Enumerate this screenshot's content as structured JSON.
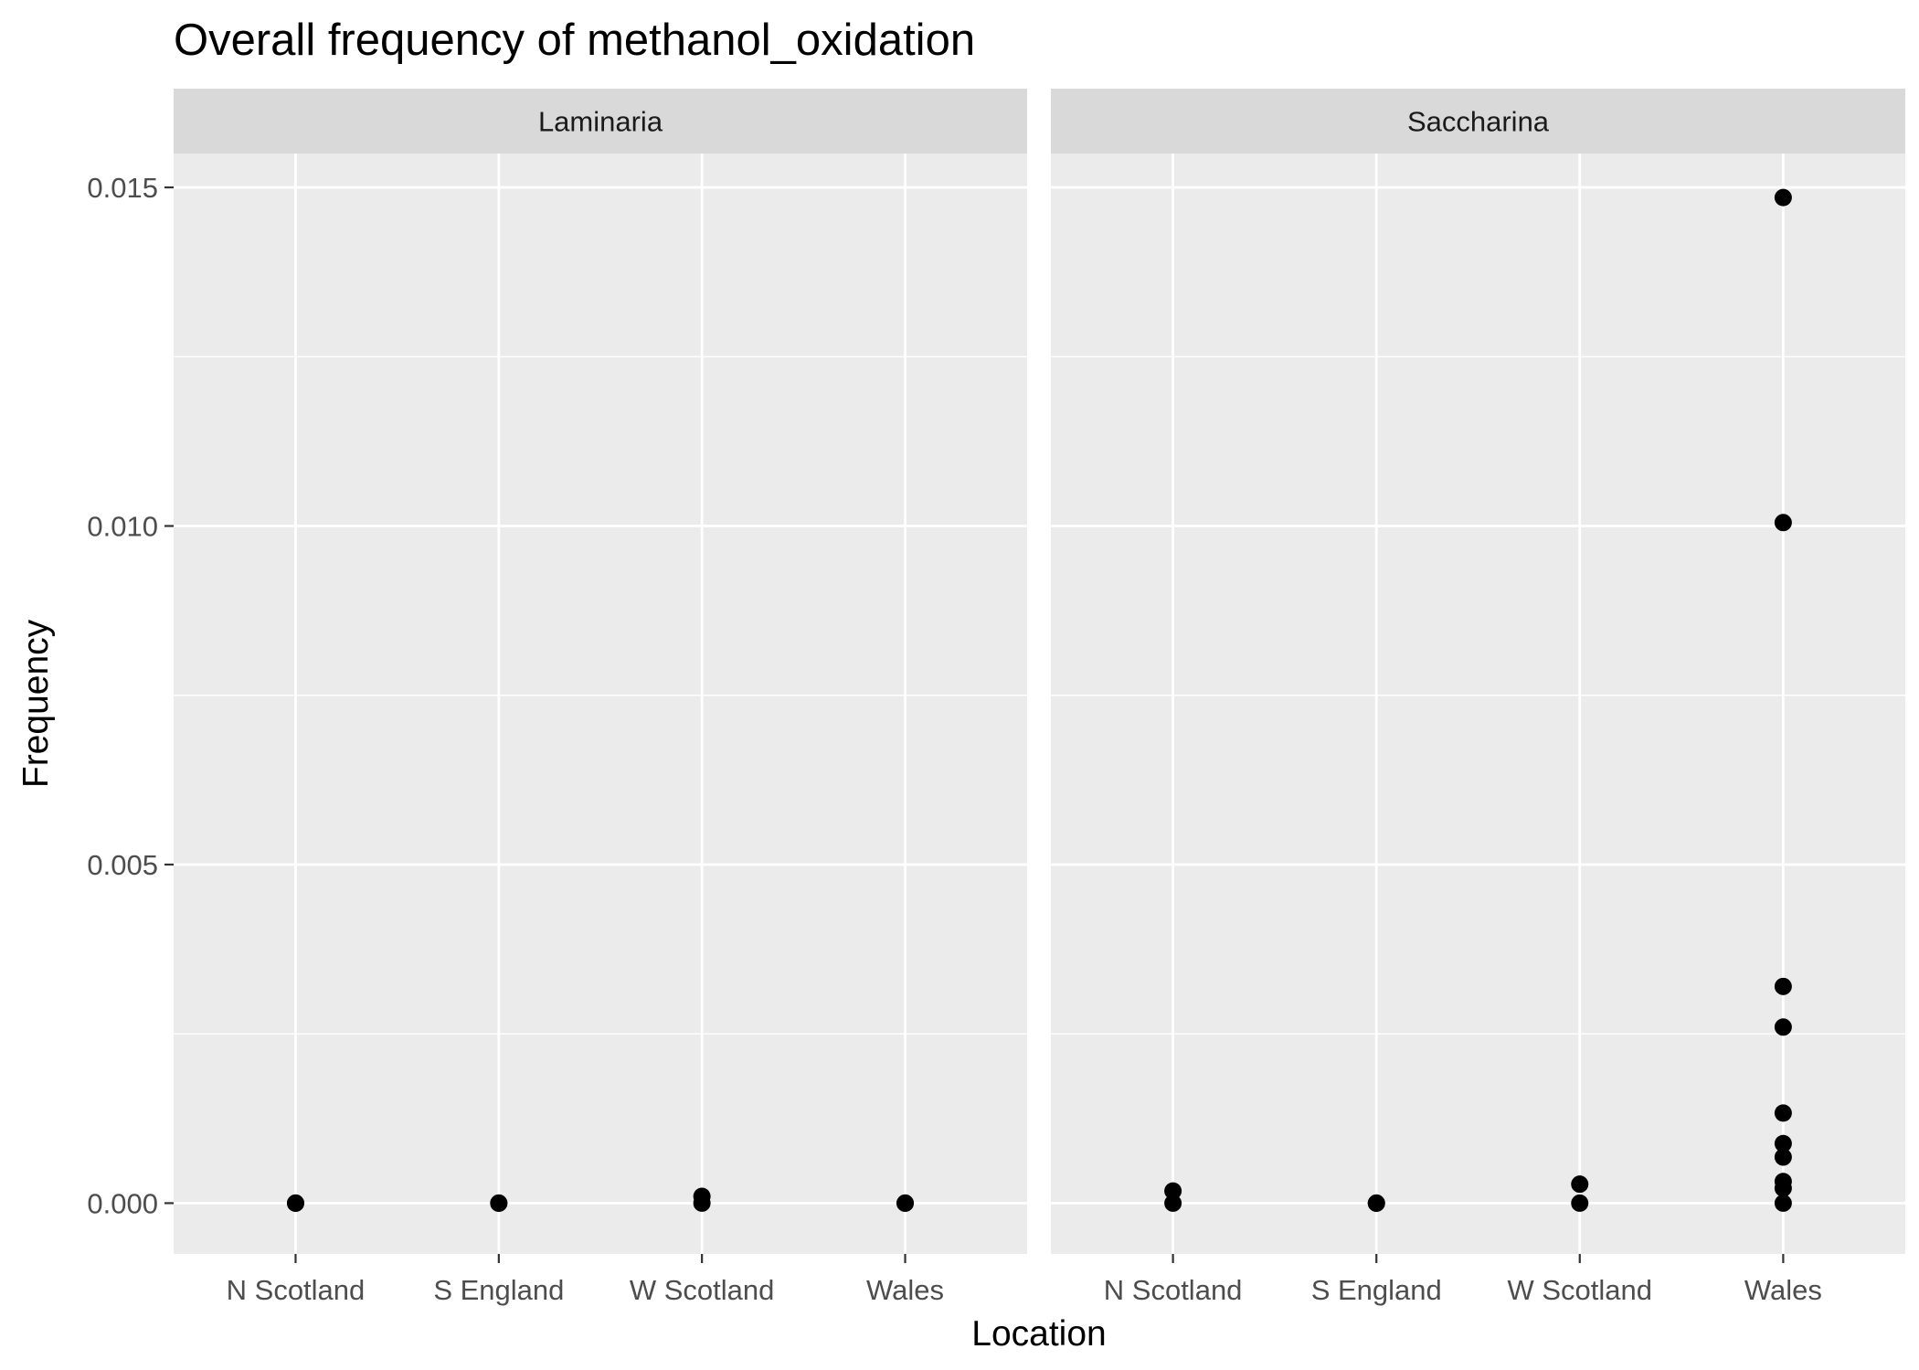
{
  "chart_data": {
    "type": "scatter",
    "title": "Overall frequency of methanol_oxidation",
    "xlabel": "Location",
    "ylabel": "Frequency",
    "categories": [
      "N Scotland",
      "S England",
      "W Scotland",
      "Wales"
    ],
    "ylim": [
      -0.00075,
      0.0155
    ],
    "yticks": [
      0.0,
      0.005,
      0.01,
      0.015
    ],
    "ytick_labels": [
      "0.000",
      "0.005",
      "0.010",
      "0.015"
    ],
    "grid": true,
    "legend": "none",
    "colors": {
      "panel_bg": "#ebebeb",
      "strip_bg": "#d9d9d9",
      "grid": "#ffffff",
      "point": "#000000",
      "tick": "#333333"
    },
    "facets": [
      {
        "name": "Laminaria",
        "points": [
          {
            "x": "N Scotland",
            "y": 0.0
          },
          {
            "x": "N Scotland",
            "y": 0.0
          },
          {
            "x": "S England",
            "y": 0.0
          },
          {
            "x": "S England",
            "y": 0.0
          },
          {
            "x": "W Scotland",
            "y": 0.0
          },
          {
            "x": "W Scotland",
            "y": 0.0001
          },
          {
            "x": "Wales",
            "y": 0.0
          },
          {
            "x": "Wales",
            "y": 0.0
          }
        ]
      },
      {
        "name": "Saccharina",
        "points": [
          {
            "x": "N Scotland",
            "y": 0.0
          },
          {
            "x": "N Scotland",
            "y": 0.00018
          },
          {
            "x": "S England",
            "y": 0.0
          },
          {
            "x": "S England",
            "y": 0.0
          },
          {
            "x": "W Scotland",
            "y": 0.0
          },
          {
            "x": "W Scotland",
            "y": 0.00028
          },
          {
            "x": "Wales",
            "y": 0.0
          },
          {
            "x": "Wales",
            "y": 0.00022
          },
          {
            "x": "Wales",
            "y": 0.00032
          },
          {
            "x": "Wales",
            "y": 0.00068
          },
          {
            "x": "Wales",
            "y": 0.00088
          },
          {
            "x": "Wales",
            "y": 0.00133
          },
          {
            "x": "Wales",
            "y": 0.0026
          },
          {
            "x": "Wales",
            "y": 0.0032
          },
          {
            "x": "Wales",
            "y": 0.01005
          },
          {
            "x": "Wales",
            "y": 0.01485
          }
        ]
      }
    ]
  }
}
